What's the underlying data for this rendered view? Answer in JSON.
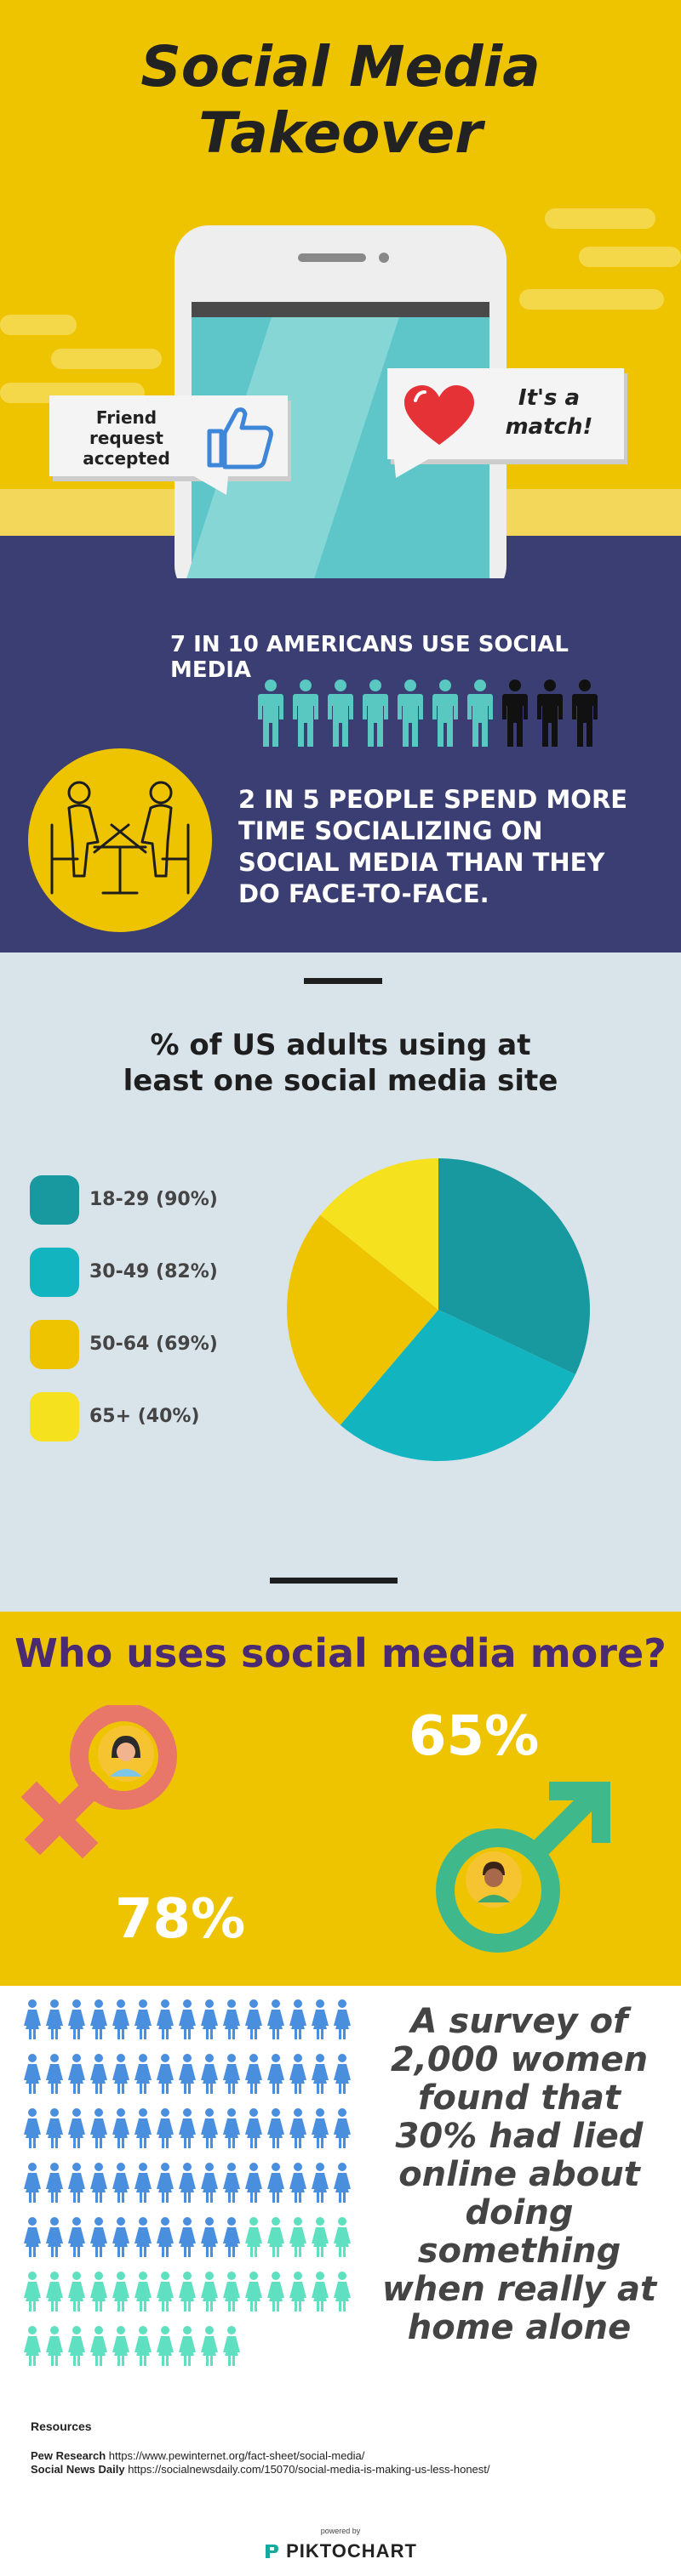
{
  "header": {
    "title_line1": "Social Media",
    "title_line2": "Takeover",
    "bubble_left": [
      "Friend",
      "request",
      "accepted"
    ],
    "bubble_right": [
      "It's a",
      "match!"
    ]
  },
  "stats": {
    "stat1": "7 IN 10 AMERICANS USE SOCIAL MEDIA",
    "people_total": 10,
    "people_highlighted": 7,
    "stat2": [
      "2 IN 5 PEOPLE SPEND MORE",
      "TIME SOCIALIZING ON",
      "SOCIAL MEDIA THAN THEY",
      "DO FACE-TO-FACE."
    ],
    "colors": {
      "highlight": "#58c8c0",
      "rest": "#111111"
    }
  },
  "chart_data": {
    "type": "pie",
    "title": [
      "% of US adults using at",
      "least one social media site"
    ],
    "series": [
      {
        "name": "18-29 (90%)",
        "value": 90,
        "color": "#17999f"
      },
      {
        "name": "30-49 (82%)",
        "value": 82,
        "color": "#12b5bf"
      },
      {
        "name": "50-64 (69%)",
        "value": 69,
        "color": "#eec400"
      },
      {
        "name": "65+ (40%)",
        "value": 40,
        "color": "#f6e11e"
      }
    ],
    "legend_position": "left"
  },
  "gender": {
    "title": "Who uses social media more?",
    "female_pct": "78%",
    "male_pct": "65%",
    "colors": {
      "female": "#e8776a",
      "male": "#3fb98c"
    }
  },
  "survey": {
    "text": [
      "A survey of",
      "2,000 women",
      "found that",
      "30% had lied",
      "online about",
      "doing",
      "something",
      "when really at",
      "home alone"
    ],
    "icons_total": 100,
    "icons_highlighted": 30,
    "colors": {
      "base": "#4a8fde",
      "highlight": "#5fe0c0"
    }
  },
  "footer": {
    "resources_heading": "Resources",
    "sources": [
      {
        "name": "Pew Research",
        "url": "https://www.pewinternet.org/fact-sheet/social-media/"
      },
      {
        "name": "Social News Daily",
        "url": "https://socialnewsdaily.com/15070/social-media-is-making-us-less-honest/"
      }
    ],
    "powered_by": "powered by",
    "brand": "PIKTOCHART"
  }
}
